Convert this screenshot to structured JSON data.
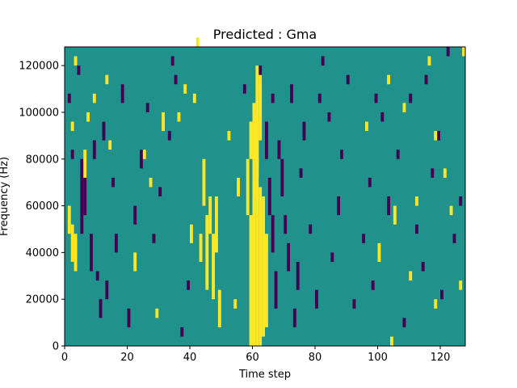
{
  "chart_data": {
    "type": "heatmap",
    "title": "Predicted : Gma",
    "xlabel": "Time step",
    "ylabel": "Frequency (Hz)",
    "xlim": [
      0,
      128
    ],
    "ylim": [
      0,
      128000
    ],
    "x_ticks": [
      0,
      20,
      40,
      60,
      80,
      100,
      120
    ],
    "y_ticks": [
      0,
      20000,
      40000,
      60000,
      80000,
      100000,
      120000
    ],
    "x_tick_labels": [
      "0",
      "20",
      "40",
      "60",
      "80",
      "100",
      "120"
    ],
    "y_tick_labels": [
      "0",
      "20000",
      "40000",
      "60000",
      "80000",
      "100000",
      "120000"
    ],
    "grid": false,
    "colormap": {
      "low": "#440154",
      "mid": "#21918c",
      "high": "#fde725"
    },
    "background_value": 0,
    "value_levels": {
      "low": -1,
      "mid": 0,
      "high": 1
    },
    "frequency_bin_size": 4000,
    "time_step_size": 1,
    "cells_high": [
      [
        59,
        0,
        14
      ],
      [
        60,
        0,
        18
      ],
      [
        61,
        0,
        20
      ],
      [
        62,
        0,
        17
      ],
      [
        63,
        1,
        16
      ],
      [
        64,
        2,
        12
      ],
      [
        60,
        16,
        26
      ],
      [
        61,
        18,
        30
      ],
      [
        62,
        22,
        29
      ],
      [
        58,
        14,
        20
      ],
      [
        59,
        20,
        24
      ],
      [
        60,
        20,
        25
      ],
      [
        61,
        19,
        24
      ],
      [
        45,
        6,
        14
      ],
      [
        47,
        5,
        12
      ],
      [
        48,
        10,
        16
      ],
      [
        49,
        2,
        6
      ],
      [
        46,
        12,
        16
      ],
      [
        43,
        9,
        12
      ],
      [
        44,
        15,
        20
      ],
      [
        40,
        11,
        13
      ],
      [
        2,
        9,
        13
      ],
      [
        3,
        8,
        12
      ],
      [
        1,
        12,
        15
      ],
      [
        2,
        23,
        24
      ],
      [
        3,
        30,
        31
      ],
      [
        6,
        18,
        21
      ],
      [
        7,
        24,
        25
      ],
      [
        9,
        26,
        27
      ],
      [
        13,
        28,
        29
      ],
      [
        14,
        21,
        22
      ],
      [
        22,
        8,
        10
      ],
      [
        25,
        20,
        21
      ],
      [
        27,
        17,
        18
      ],
      [
        29,
        3,
        4
      ],
      [
        31,
        23,
        25
      ],
      [
        36,
        24,
        25
      ],
      [
        38,
        27,
        28
      ],
      [
        41,
        26,
        27
      ],
      [
        42,
        32,
        33
      ],
      [
        52,
        22,
        23
      ],
      [
        54,
        4,
        5
      ],
      [
        55,
        16,
        18
      ],
      [
        100,
        9,
        11
      ],
      [
        104,
        0,
        1
      ],
      [
        105,
        13,
        15
      ],
      [
        108,
        25,
        26
      ],
      [
        110,
        7,
        8
      ],
      [
        112,
        15,
        16
      ],
      [
        116,
        30,
        31
      ],
      [
        118,
        22,
        23
      ],
      [
        121,
        18,
        19
      ],
      [
        123,
        14,
        15
      ],
      [
        126,
        6,
        7
      ],
      [
        127,
        31,
        32
      ],
      [
        118,
        4,
        5
      ],
      [
        103,
        28,
        29
      ],
      [
        96,
        23,
        24
      ]
    ],
    "cells_low": [
      [
        5,
        12,
        20
      ],
      [
        6,
        14,
        18
      ],
      [
        8,
        8,
        12
      ],
      [
        9,
        20,
        22
      ],
      [
        11,
        3,
        5
      ],
      [
        12,
        22,
        24
      ],
      [
        13,
        5,
        7
      ],
      [
        15,
        17,
        18
      ],
      [
        16,
        10,
        12
      ],
      [
        18,
        26,
        28
      ],
      [
        20,
        2,
        4
      ],
      [
        22,
        13,
        15
      ],
      [
        24,
        19,
        21
      ],
      [
        28,
        11,
        12
      ],
      [
        30,
        16,
        17
      ],
      [
        33,
        22,
        23
      ],
      [
        35,
        28,
        29
      ],
      [
        37,
        1,
        2
      ],
      [
        39,
        6,
        7
      ],
      [
        62,
        28,
        30
      ],
      [
        64,
        20,
        24
      ],
      [
        65,
        14,
        18
      ],
      [
        66,
        10,
        14
      ],
      [
        67,
        4,
        8
      ],
      [
        68,
        20,
        22
      ],
      [
        69,
        16,
        20
      ],
      [
        70,
        12,
        14
      ],
      [
        71,
        8,
        11
      ],
      [
        72,
        26,
        28
      ],
      [
        73,
        2,
        4
      ],
      [
        74,
        6,
        9
      ],
      [
        75,
        18,
        19
      ],
      [
        76,
        22,
        24
      ],
      [
        78,
        12,
        13
      ],
      [
        80,
        4,
        6
      ],
      [
        82,
        30,
        31
      ],
      [
        84,
        24,
        25
      ],
      [
        85,
        9,
        10
      ],
      [
        87,
        14,
        16
      ],
      [
        88,
        20,
        21
      ],
      [
        90,
        28,
        29
      ],
      [
        92,
        4,
        5
      ],
      [
        95,
        11,
        12
      ],
      [
        97,
        17,
        18
      ],
      [
        98,
        6,
        7
      ],
      [
        101,
        24,
        25
      ],
      [
        103,
        14,
        16
      ],
      [
        106,
        20,
        21
      ],
      [
        108,
        2,
        3
      ],
      [
        110,
        26,
        27
      ],
      [
        112,
        12,
        13
      ],
      [
        114,
        8,
        9
      ],
      [
        115,
        28,
        29
      ],
      [
        117,
        18,
        19
      ],
      [
        119,
        22,
        23
      ],
      [
        120,
        5,
        6
      ],
      [
        122,
        31,
        32
      ],
      [
        124,
        11,
        12
      ],
      [
        126,
        15,
        16
      ],
      [
        1,
        26,
        27
      ],
      [
        2,
        20,
        21
      ],
      [
        4,
        29,
        30
      ],
      [
        10,
        7,
        8
      ],
      [
        26,
        25,
        26
      ],
      [
        34,
        30,
        31
      ],
      [
        57,
        27,
        28
      ],
      [
        66,
        26,
        27
      ],
      [
        81,
        26,
        27
      ],
      [
        99,
        26,
        27
      ]
    ]
  }
}
